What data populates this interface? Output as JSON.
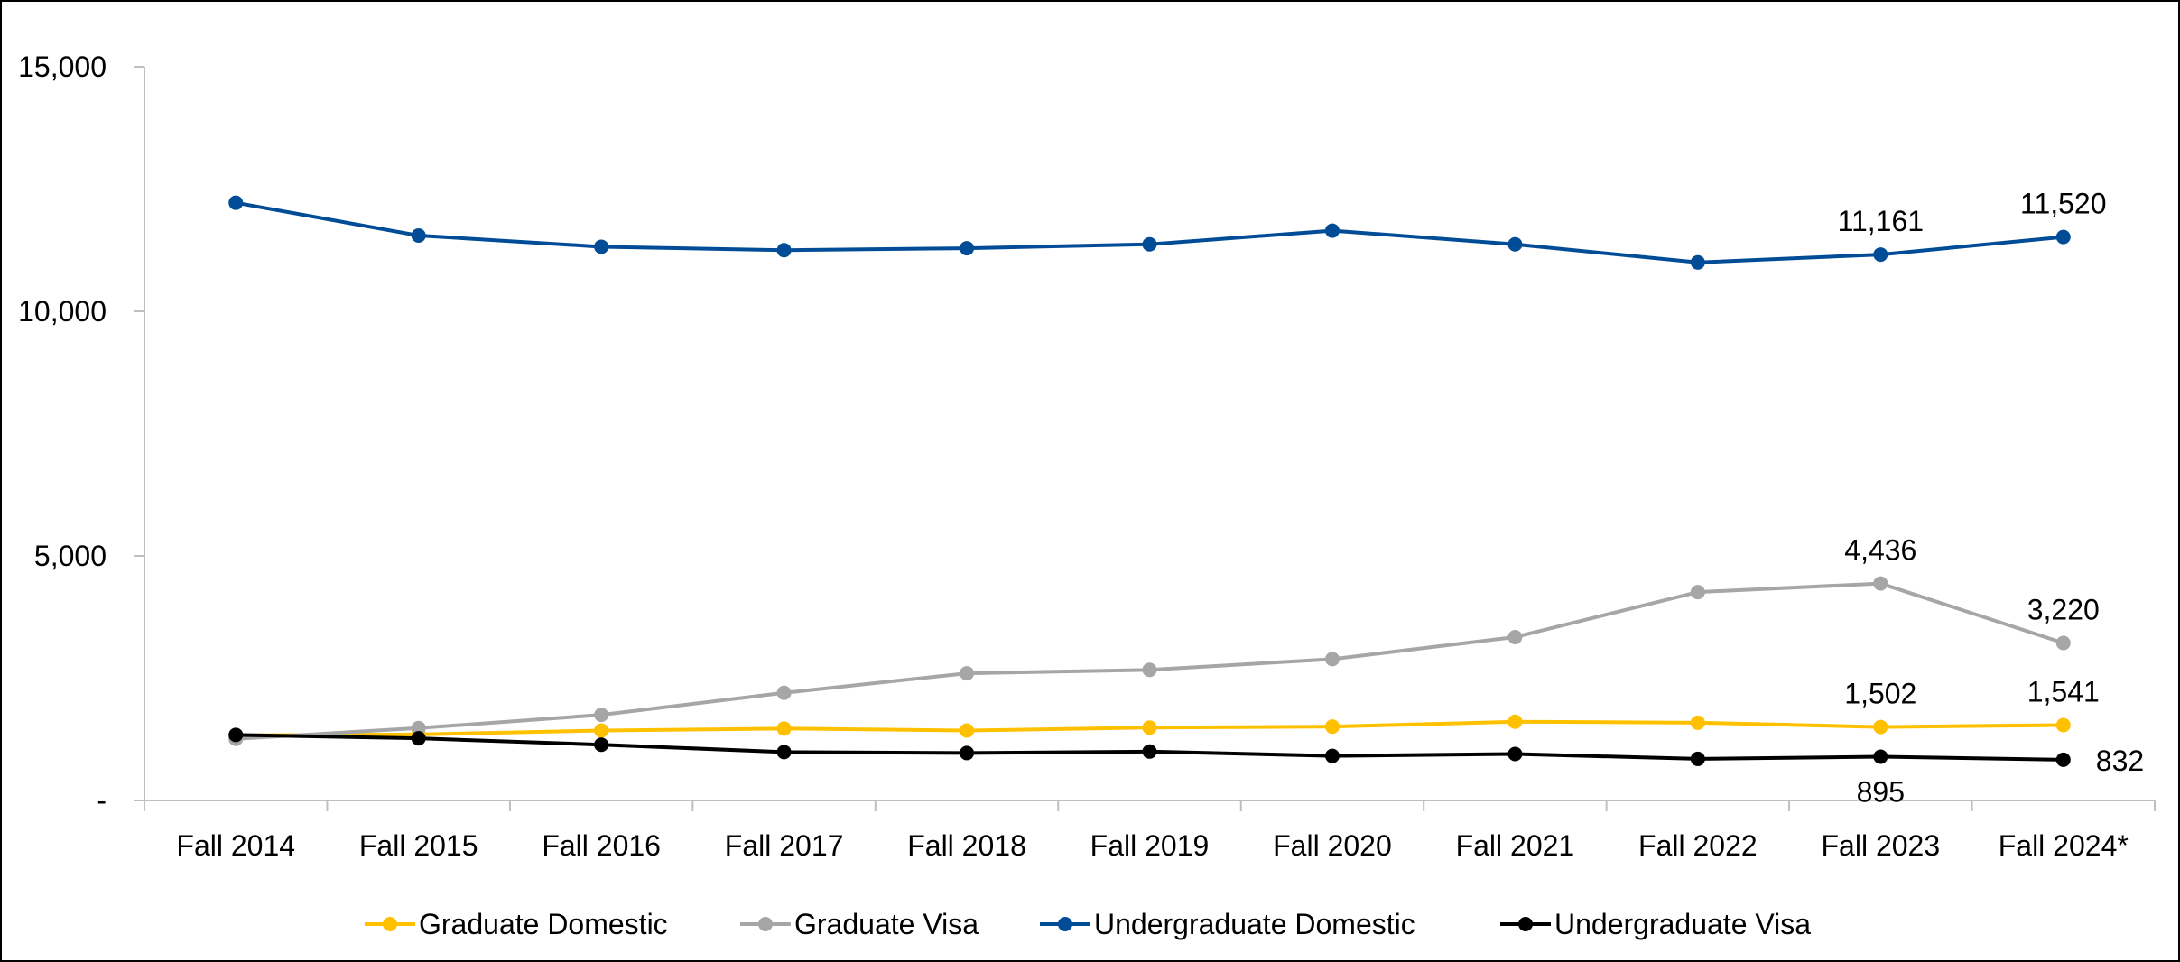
{
  "chart_data": {
    "type": "line",
    "title": "",
    "xlabel": "",
    "ylabel": "",
    "categories": [
      "Fall 2014",
      "Fall 2015",
      "Fall 2016",
      "Fall 2017",
      "Fall 2018",
      "Fall 2019",
      "Fall 2020",
      "Fall 2021",
      "Fall 2022",
      "Fall 2023",
      "Fall 2024*"
    ],
    "ylim": [
      0,
      15000
    ],
    "yticks": [
      {
        "value": 0,
        "label": "-"
      },
      {
        "value": 5000,
        "label": "5,000"
      },
      {
        "value": 10000,
        "label": "10,000"
      },
      {
        "value": 15000,
        "label": "15,000"
      }
    ],
    "grid": false,
    "legend_position": "bottom",
    "series": [
      {
        "name": "Graduate Domestic",
        "color": "#FFC000",
        "values": [
          1330,
          1350,
          1430,
          1470,
          1430,
          1490,
          1510,
          1610,
          1590,
          1502,
          1541
        ],
        "labels": [
          {
            "index": 9,
            "text": "1,502",
            "pos": "above"
          },
          {
            "index": 10,
            "text": "1,541",
            "pos": "above"
          }
        ]
      },
      {
        "name": "Graduate Visa",
        "color": "#A6A6A6",
        "values": [
          1260,
          1480,
          1750,
          2200,
          2600,
          2670,
          2890,
          3340,
          4260,
          4436,
          3220
        ],
        "labels": [
          {
            "index": 9,
            "text": "4,436",
            "pos": "above"
          },
          {
            "index": 10,
            "text": "3,220",
            "pos": "above"
          }
        ]
      },
      {
        "name": "Undergraduate Domestic",
        "color": "#004C97",
        "values": [
          12220,
          11550,
          11320,
          11250,
          11290,
          11370,
          11650,
          11370,
          11000,
          11161,
          11520
        ],
        "labels": [
          {
            "index": 9,
            "text": "11,161",
            "pos": "above"
          },
          {
            "index": 10,
            "text": "11,520",
            "pos": "above"
          }
        ]
      },
      {
        "name": "Undergraduate Visa",
        "color": "#000000",
        "values": [
          1340,
          1270,
          1140,
          990,
          970,
          1000,
          910,
          950,
          850,
          895,
          832
        ],
        "labels": [
          {
            "index": 9,
            "text": "895",
            "pos": "below"
          },
          {
            "index": 10,
            "text": "832",
            "pos": "right"
          }
        ]
      }
    ]
  }
}
